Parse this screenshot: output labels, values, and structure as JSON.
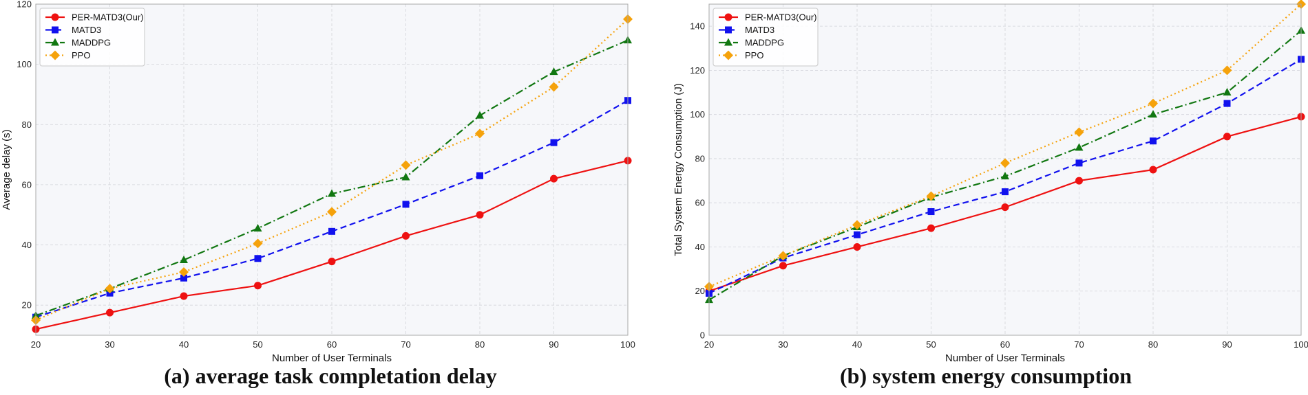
{
  "chart_data": [
    {
      "type": "line",
      "caption": "(a) average task completation delay",
      "xlabel": "Number of User Terminals",
      "ylabel": "Average delay (s)",
      "x": [
        20,
        30,
        40,
        50,
        60,
        70,
        80,
        90,
        100
      ],
      "xlim": [
        20,
        100
      ],
      "ylim": [
        10,
        120
      ],
      "xticks": [
        20,
        30,
        40,
        50,
        60,
        70,
        80,
        90,
        100
      ],
      "yticks": [
        20,
        40,
        60,
        80,
        100,
        120
      ],
      "grid": true,
      "legend_position": "top-left",
      "series": [
        {
          "name": "PER-MATD3(Our)",
          "color": "#ee1111",
          "style": "solid",
          "marker": "circle",
          "values": [
            12,
            17.5,
            23,
            26.5,
            34.5,
            43,
            50,
            62,
            68
          ]
        },
        {
          "name": "MATD3",
          "color": "#1111ee",
          "style": "dashed",
          "marker": "square",
          "values": [
            16,
            24,
            29,
            35.5,
            44.5,
            53.5,
            63,
            74,
            88
          ]
        },
        {
          "name": "MADDPG",
          "color": "#117711",
          "style": "dashdot",
          "marker": "triangle",
          "values": [
            16.5,
            25.5,
            35,
            45.5,
            57,
            62.5,
            83,
            97.5,
            108
          ]
        },
        {
          "name": "PPO",
          "color": "#f5a20b",
          "style": "dotted",
          "marker": "diamond",
          "values": [
            15,
            25.5,
            31,
            40.5,
            51,
            66.5,
            77,
            92.5,
            115
          ]
        }
      ]
    },
    {
      "type": "line",
      "caption": "(b) system energy consumption",
      "xlabel": "Number of User Terminals",
      "ylabel": "Total System Energy Consumption (J)",
      "x": [
        20,
        30,
        40,
        50,
        60,
        70,
        80,
        90,
        100
      ],
      "xlim": [
        20,
        100
      ],
      "ylim": [
        0,
        150
      ],
      "xticks": [
        20,
        30,
        40,
        50,
        60,
        70,
        80,
        90,
        100
      ],
      "yticks": [
        0,
        20,
        40,
        60,
        80,
        100,
        120,
        140
      ],
      "grid": true,
      "legend_position": "top-left",
      "series": [
        {
          "name": "PER-MATD3(Our)",
          "color": "#ee1111",
          "style": "solid",
          "marker": "circle",
          "values": [
            20,
            31.5,
            40,
            48.5,
            58,
            70,
            75,
            90,
            99
          ]
        },
        {
          "name": "MATD3",
          "color": "#1111ee",
          "style": "dashed",
          "marker": "square",
          "values": [
            19,
            35,
            45.5,
            56,
            65,
            78,
            88,
            105,
            125
          ]
        },
        {
          "name": "MADDPG",
          "color": "#117711",
          "style": "dashdot",
          "marker": "triangle",
          "values": [
            16,
            36,
            49,
            62.5,
            72,
            85,
            100,
            110,
            138
          ]
        },
        {
          "name": "PPO",
          "color": "#f5a20b",
          "style": "dotted",
          "marker": "diamond",
          "values": [
            22,
            36,
            50,
            63,
            78,
            92,
            105,
            120,
            150
          ]
        }
      ]
    }
  ]
}
